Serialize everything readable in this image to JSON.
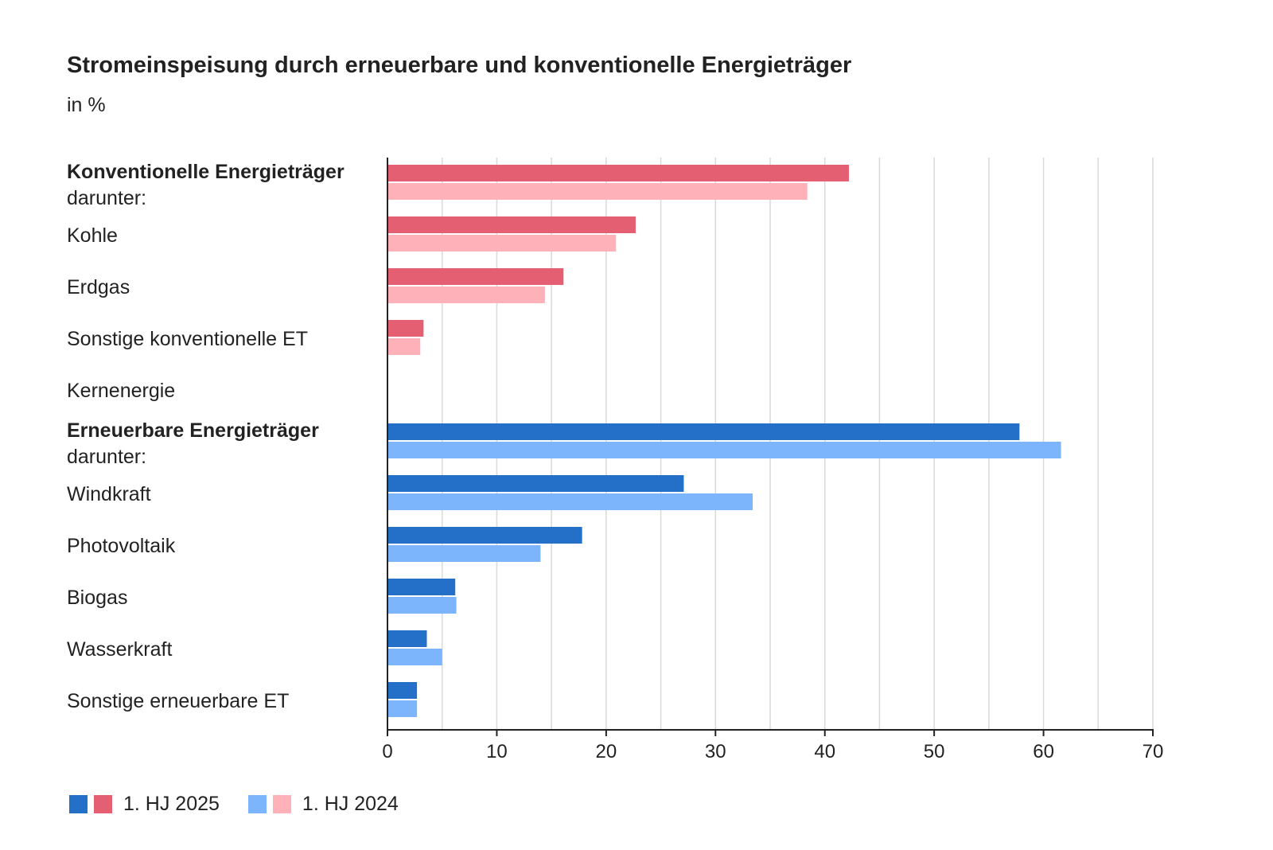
{
  "chart_data": {
    "type": "bar",
    "orientation": "horizontal",
    "title": "Stromeinspeisung durch erneuerbare und konventionelle Energieträger",
    "subtitle": "in %",
    "xlim": [
      0,
      70
    ],
    "xticks": [
      0,
      10,
      20,
      30,
      40,
      50,
      60,
      70
    ],
    "grid": true,
    "legend_position": "bottom-left",
    "series": [
      {
        "name": "1. HJ 2025",
        "values": [
          42.2,
          22.7,
          16.1,
          3.3,
          0,
          57.8,
          27.1,
          17.8,
          6.2,
          3.6,
          2.7
        ]
      },
      {
        "name": "1. HJ 2024",
        "values": [
          38.4,
          20.9,
          14.4,
          3.0,
          0,
          61.6,
          33.4,
          14.0,
          6.3,
          5.0,
          2.7
        ]
      }
    ],
    "categories": [
      {
        "label": "Konventionelle Energieträger",
        "sublabel": "darunter:",
        "bold": true,
        "group": "konventionell"
      },
      {
        "label": "Kohle",
        "bold": false,
        "group": "konventionell"
      },
      {
        "label": "Erdgas",
        "bold": false,
        "group": "konventionell"
      },
      {
        "label": "Sonstige konventionelle ET",
        "bold": false,
        "group": "konventionell"
      },
      {
        "label": "Kernenergie",
        "bold": false,
        "group": "konventionell"
      },
      {
        "label": "Erneuerbare Energieträger",
        "sublabel": "darunter:",
        "bold": true,
        "group": "erneuerbar"
      },
      {
        "label": "Windkraft",
        "bold": false,
        "group": "erneuerbar"
      },
      {
        "label": "Photovoltaik",
        "bold": false,
        "group": "erneuerbar"
      },
      {
        "label": "Biogas",
        "bold": false,
        "group": "erneuerbar"
      },
      {
        "label": "Wasserkraft",
        "bold": false,
        "group": "erneuerbar"
      },
      {
        "label": "Sonstige erneuerbare ET",
        "bold": false,
        "group": "erneuerbar"
      }
    ],
    "colors": {
      "konventionell": {
        "1. HJ 2025": "#e55f72",
        "1. HJ 2024": "#ffb1b9"
      },
      "erneuerbar": {
        "1. HJ 2025": "#246fc7",
        "1. HJ 2024": "#7db5fd"
      },
      "gridline": "#d9d9d9",
      "axis": "#222222"
    }
  },
  "legend": {
    "items": [
      {
        "label": "1. HJ 2025",
        "swatches": [
          "#246fc7",
          "#e55f72"
        ]
      },
      {
        "label": "1. HJ 2024",
        "swatches": [
          "#7db5fd",
          "#ffb1b9"
        ]
      }
    ]
  }
}
